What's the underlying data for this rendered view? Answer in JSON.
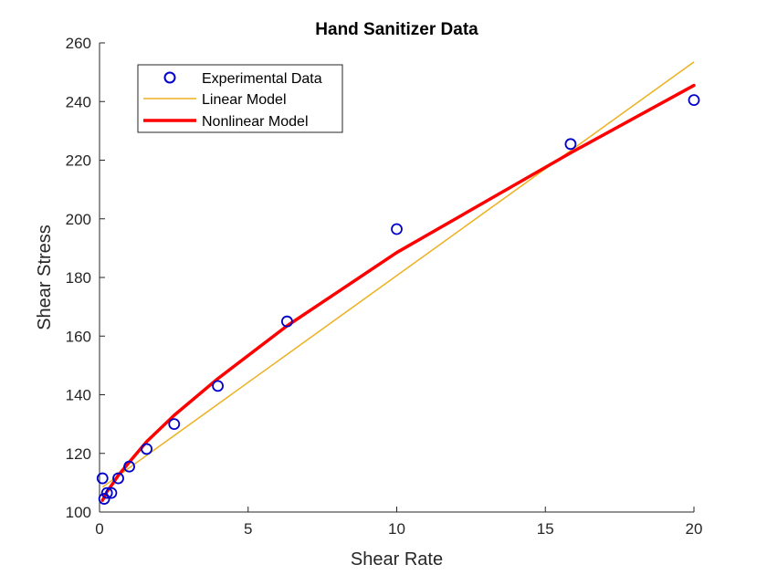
{
  "chart_data": {
    "type": "scatter",
    "title": "Hand Sanitizer Data",
    "xlabel": "Shear Rate",
    "ylabel": "Shear Stress",
    "xlim": [
      0,
      20
    ],
    "ylim": [
      100,
      260
    ],
    "xticks": [
      0,
      5,
      10,
      15,
      20
    ],
    "yticks": [
      100,
      120,
      140,
      160,
      180,
      200,
      220,
      240,
      260
    ],
    "grid": false,
    "legend_placement": "top-left",
    "series": [
      {
        "name": "Experimental Data",
        "style": "markers",
        "color": "#0000CC",
        "x": [
          0.1,
          0.158,
          0.251,
          0.398,
          0.631,
          1.0,
          1.585,
          2.512,
          3.981,
          6.31,
          10.0,
          15.85,
          20.0
        ],
        "y": [
          111.5,
          104.5,
          106.5,
          106.5,
          111.5,
          115.5,
          121.5,
          130.0,
          143.0,
          165.0,
          196.5,
          225.5,
          240.5
        ]
      },
      {
        "name": "Linear Model",
        "style": "line",
        "color": "#EDB120",
        "x": [
          0.1,
          20.0
        ],
        "y": [
          108.5,
          253.5
        ]
      },
      {
        "name": "Nonlinear Model",
        "style": "line-thick",
        "color": "#FF0000",
        "x": [
          0.1,
          0.158,
          0.251,
          0.398,
          0.631,
          1.0,
          1.585,
          2.512,
          3.981,
          6.31,
          10.0,
          15.85,
          20.0
        ],
        "y": [
          104.0,
          105.0,
          107.0,
          109.0,
          112.5,
          117.0,
          124.0,
          133.0,
          145.5,
          163.5,
          188.5,
          222.5,
          245.5
        ]
      }
    ]
  }
}
